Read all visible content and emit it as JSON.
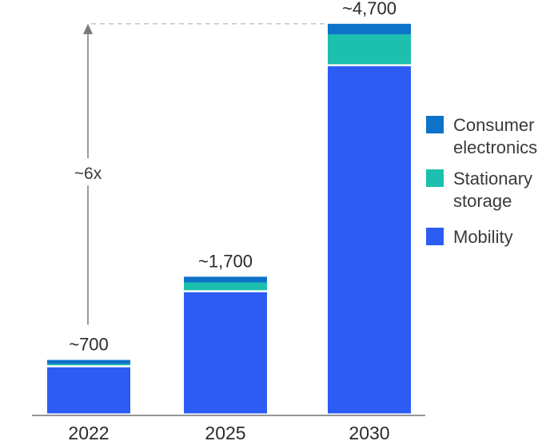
{
  "chart_data": {
    "type": "bar",
    "stacked": true,
    "categories": [
      "2022",
      "2025",
      "2030"
    ],
    "totals_labels": [
      "~700",
      "~1,700",
      "~4,700"
    ],
    "series": [
      {
        "name": "Mobility",
        "color": "#2d5cf5",
        "values": [
          590,
          1510,
          4280
        ]
      },
      {
        "name": "Stationary storage",
        "color": "#1dbfae",
        "values": [
          40,
          120,
          390
        ]
      },
      {
        "name": "Consumer electronics",
        "color": "#0d73c9",
        "values": [
          50,
          70,
          130
        ]
      }
    ],
    "legend": {
      "placement": "right",
      "items": [
        {
          "lines": [
            "Consumer",
            "electronics"
          ],
          "color": "#0d73c9"
        },
        {
          "lines": [
            "Stationary",
            "storage"
          ],
          "color": "#1dbfae"
        },
        {
          "lines": [
            "Mobility"
          ],
          "color": "#2d5cf5"
        }
      ]
    },
    "annotation": {
      "text": "~6x",
      "from_category": "2022",
      "to_category": "2030"
    },
    "ylim": [
      0,
      4700
    ]
  }
}
